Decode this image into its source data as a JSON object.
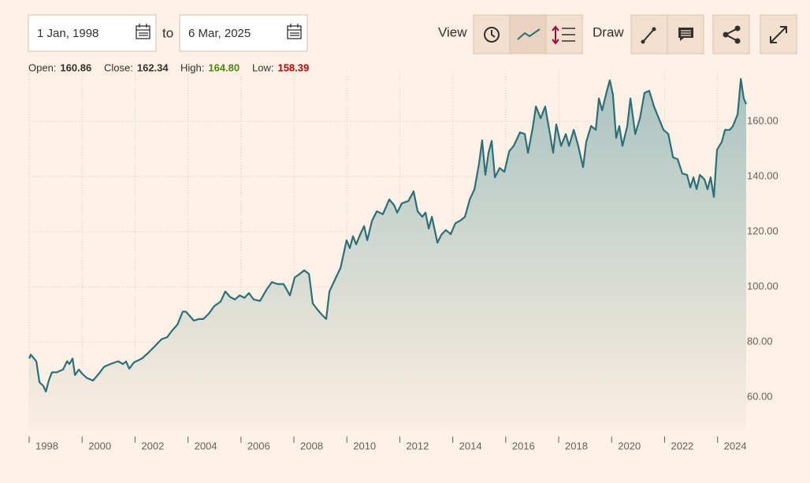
{
  "toolbar": {
    "from": "1 Jan, 1998",
    "to_label": "to",
    "to": "6 Mar, 2025",
    "view": "View",
    "draw": "Draw"
  },
  "stats": [
    {
      "label": "Open:",
      "value": "160.86",
      "color": "#33302e"
    },
    {
      "label": "Close:",
      "value": "162.34",
      "color": "#33302e"
    },
    {
      "label": "High:",
      "value": "164.80",
      "color": "#4b8a0d"
    },
    {
      "label": "Low:",
      "value": "158.39",
      "color": "#c00000"
    }
  ],
  "chart_data": {
    "type": "area",
    "color": "#2b6f77",
    "grid": true,
    "xlim": [
      1998,
      2025.2
    ],
    "ylim": [
      48,
      178
    ],
    "xticks": [
      1998,
      2000,
      2002,
      2004,
      2006,
      2008,
      2010,
      2012,
      2014,
      2016,
      2018,
      2020,
      2022,
      2024
    ],
    "yticks": [
      {
        "value": 60,
        "label": "60.00"
      },
      {
        "value": 80,
        "label": "80.00"
      },
      {
        "value": 100,
        "label": "100.00"
      },
      {
        "value": 120,
        "label": "120.00"
      },
      {
        "value": 140,
        "label": "140.00"
      },
      {
        "value": 160,
        "label": "160.00"
      }
    ],
    "x": [
      1998.0,
      1998.06,
      1998.27,
      1998.39,
      1998.54,
      1998.63,
      1998.74,
      1998.86,
      1999.04,
      1999.28,
      1999.43,
      1999.52,
      1999.64,
      1999.73,
      1999.88,
      1999.99,
      2000.17,
      2000.41,
      2000.62,
      2000.83,
      2001.07,
      2001.36,
      2001.54,
      2001.66,
      2001.78,
      2001.96,
      2002.26,
      2002.49,
      2002.73,
      2003.0,
      2003.21,
      2003.39,
      2003.6,
      2003.8,
      2003.92,
      2004.04,
      2004.22,
      2004.4,
      2004.58,
      2004.79,
      2004.99,
      2005.23,
      2005.41,
      2005.59,
      2005.77,
      2005.95,
      2006.13,
      2006.3,
      2006.48,
      2006.72,
      2006.96,
      2007.17,
      2007.38,
      2007.61,
      2007.85,
      2008.03,
      2008.21,
      2008.39,
      2008.57,
      2008.71,
      2008.89,
      2009.07,
      2009.22,
      2009.34,
      2009.55,
      2009.76,
      2009.99,
      2010.11,
      2010.23,
      2010.35,
      2010.5,
      2010.65,
      2010.77,
      2010.95,
      2011.13,
      2011.36,
      2011.6,
      2011.78,
      2011.9,
      2012.08,
      2012.32,
      2012.52,
      2012.67,
      2012.85,
      2012.97,
      2013.09,
      2013.21,
      2013.42,
      2013.57,
      2013.74,
      2013.92,
      2014.1,
      2014.28,
      2014.46,
      2014.64,
      2014.82,
      2014.99,
      2015.11,
      2015.23,
      2015.35,
      2015.47,
      2015.59,
      2015.77,
      2015.95,
      2016.13,
      2016.3,
      2016.54,
      2016.72,
      2016.84,
      2017.02,
      2017.14,
      2017.32,
      2017.49,
      2017.67,
      2017.79,
      2017.91,
      2018.09,
      2018.27,
      2018.39,
      2018.57,
      2018.74,
      2018.92,
      2019.04,
      2019.22,
      2019.4,
      2019.52,
      2019.64,
      2019.82,
      2019.93,
      2020.05,
      2020.17,
      2020.29,
      2020.41,
      2020.59,
      2020.71,
      2020.89,
      2021.07,
      2021.24,
      2021.42,
      2021.6,
      2021.78,
      2021.96,
      2022.14,
      2022.32,
      2022.49,
      2022.67,
      2022.85,
      2022.97,
      2023.09,
      2023.21,
      2023.33,
      2023.51,
      2023.62,
      2023.74,
      2023.86,
      2023.98,
      2024.16,
      2024.28,
      2024.46,
      2024.58,
      2024.76,
      2024.88,
      2024.99,
      2025.08
    ],
    "values": [
      74.0,
      75.4,
      73.0,
      65.4,
      64.0,
      62.0,
      66.0,
      69.0,
      69.0,
      70.0,
      73.0,
      72.0,
      74.0,
      68.0,
      70.0,
      68.6,
      67.0,
      66.0,
      68.3,
      71.0,
      72.0,
      73.0,
      72.0,
      72.9,
      70.3,
      72.6,
      74.0,
      76.0,
      78.3,
      81.0,
      81.7,
      84.0,
      86.3,
      91.0,
      91.0,
      89.7,
      87.7,
      88.3,
      88.3,
      90.3,
      93.0,
      94.6,
      98.3,
      96.3,
      95.4,
      96.9,
      96.0,
      97.7,
      95.4,
      94.9,
      98.9,
      101.7,
      101.0,
      101.0,
      96.9,
      103.4,
      104.6,
      106.0,
      104.6,
      94.0,
      91.7,
      89.7,
      88.3,
      98.3,
      102.6,
      106.9,
      116.9,
      114.0,
      118.3,
      115.4,
      118.9,
      122.0,
      116.9,
      124.0,
      127.4,
      126.3,
      131.7,
      129.7,
      126.9,
      130.3,
      131.1,
      134.6,
      127.4,
      125.4,
      126.9,
      121.1,
      125.4,
      116.0,
      118.9,
      120.6,
      119.1,
      123.1,
      124.0,
      125.4,
      131.7,
      135.4,
      144.6,
      153.1,
      140.6,
      148.6,
      152.9,
      139.7,
      143.1,
      141.7,
      149.1,
      151.1,
      156.0,
      155.4,
      148.6,
      157.7,
      165.4,
      161.1,
      165.4,
      155.4,
      148.6,
      158.9,
      151.1,
      155.4,
      151.1,
      156.9,
      151.1,
      143.4,
      152.6,
      158.3,
      156.9,
      168.3,
      164.0,
      171.1,
      174.9,
      169.7,
      154.0,
      158.3,
      151.1,
      158.3,
      168.3,
      155.4,
      161.1,
      170.3,
      171.1,
      165.4,
      161.1,
      156.9,
      155.4,
      146.9,
      146.3,
      141.1,
      140.6,
      136.0,
      139.7,
      135.4,
      140.6,
      138.9,
      135.4,
      139.7,
      132.6,
      149.7,
      152.6,
      156.9,
      156.9,
      158.3,
      162.6,
      175.4,
      168.3,
      166.3
    ]
  }
}
